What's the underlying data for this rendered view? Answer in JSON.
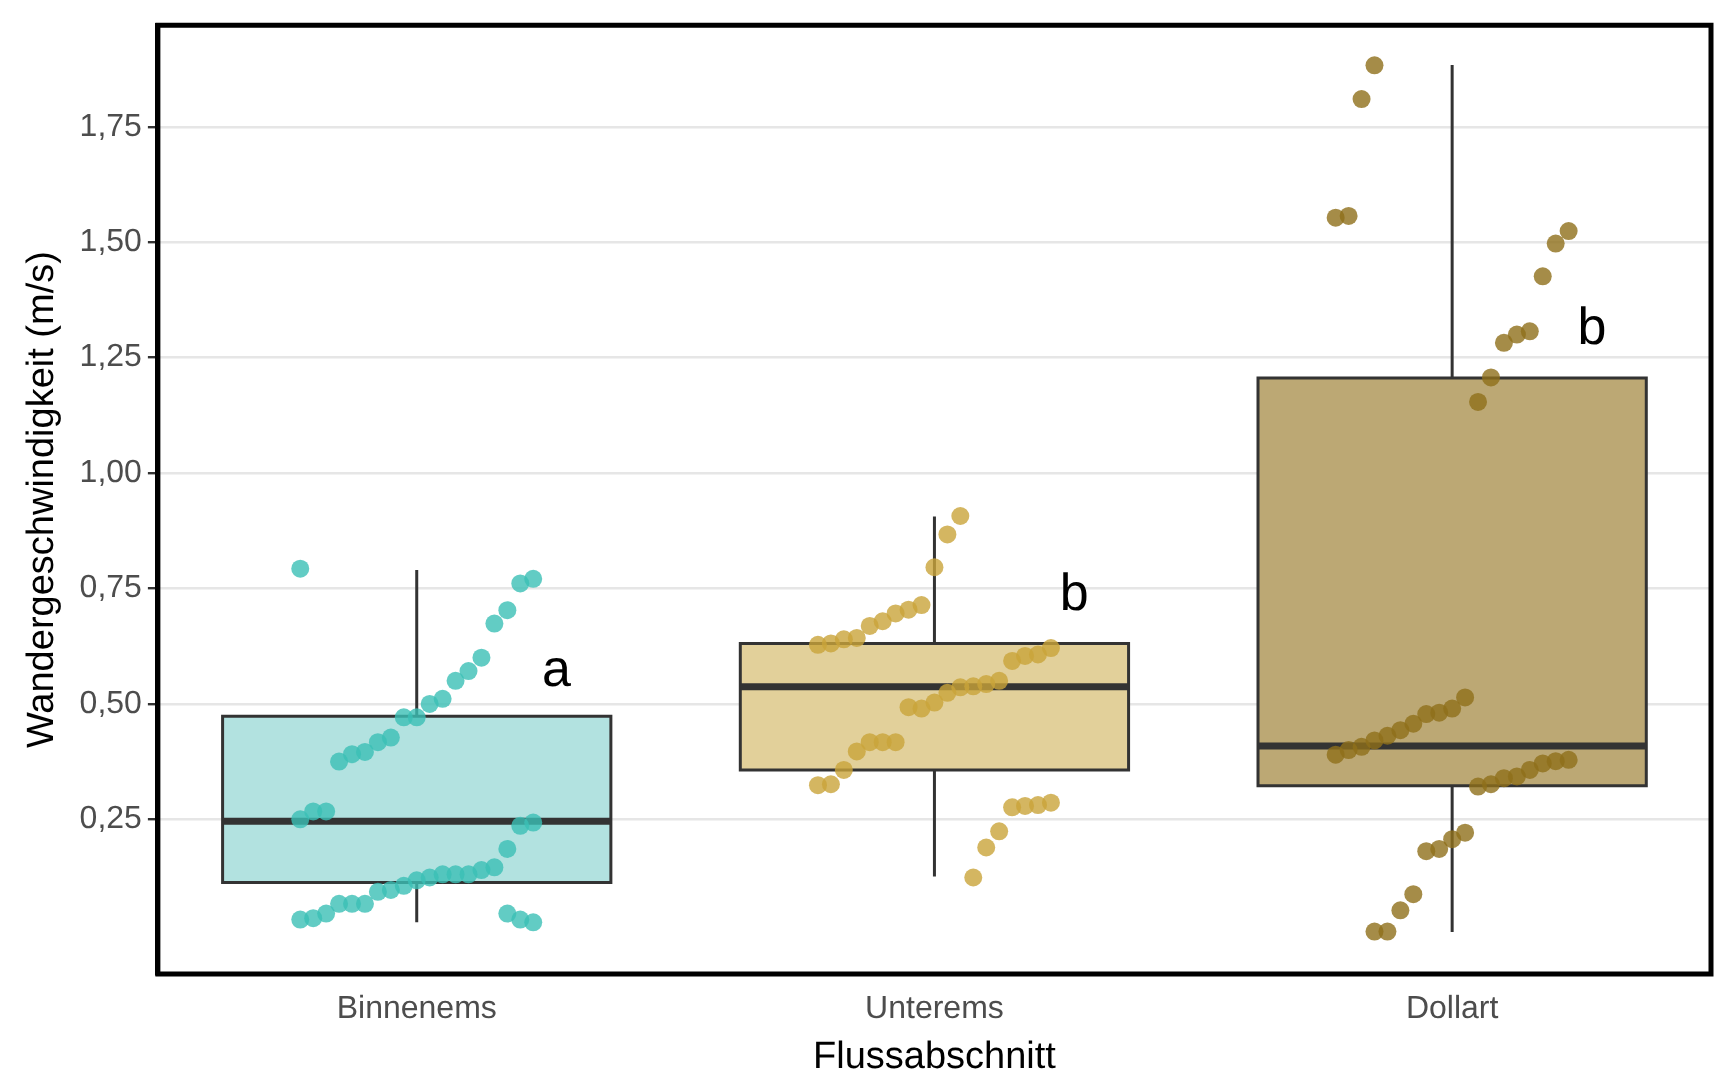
{
  "chart_data": {
    "type": "box",
    "xlabel": "Flussabschnitt",
    "ylabel": "Wandergeschwindigkeit (m/s)",
    "categories": [
      "Binnenems",
      "Unterems",
      "Dollart"
    ],
    "ylim": [
      -0.085,
      1.97
    ],
    "yticks": [
      {
        "value": 0.25,
        "label": "0,25"
      },
      {
        "value": 0.5,
        "label": "0,50"
      },
      {
        "value": 0.75,
        "label": "0,75"
      },
      {
        "value": 1,
        "label": "1,00"
      },
      {
        "value": 1.25,
        "label": "1,25"
      },
      {
        "value": 1.5,
        "label": "1,50"
      },
      {
        "value": 1.75,
        "label": "1,75"
      }
    ],
    "grid": "y",
    "legend": false,
    "marker": "circle",
    "series": [
      {
        "colors": [
          "#b2e2e0",
          "#e2d09a",
          "#bca874"
        ],
        "boxes": [
          {
            "low": 0.027,
            "q1": 0.113,
            "median": 0.246,
            "q3": 0.473,
            "high": 0.79
          },
          {
            "low": 0.126,
            "q1": 0.357,
            "median": 0.537,
            "q3": 0.631,
            "high": 0.906
          },
          {
            "low": 0.006,
            "q1": 0.323,
            "median": 0.409,
            "q3": 1.206,
            "high": 1.884
          }
        ]
      },
      {
        "type": "scatter",
        "color": "#3bbfb5",
        "x": [
          "Binnenems",
          "Binnenems",
          "Binnenems",
          "Binnenems",
          "Binnenems",
          "Binnenems",
          "Binnenems",
          "Binnenems",
          "Binnenems",
          "Binnenems",
          "Binnenems",
          "Binnenems",
          "Binnenems",
          "Binnenems",
          "Binnenems",
          "Binnenems",
          "Binnenems",
          "Binnenems",
          "Binnenems",
          "Binnenems",
          "Binnenems",
          "Binnenems",
          "Binnenems",
          "Binnenems",
          "Binnenems",
          "Binnenems",
          "Binnenems",
          "Binnenems",
          "Binnenems",
          "Binnenems",
          "Binnenems",
          "Binnenems",
          "Binnenems",
          "Binnenems",
          "Binnenems",
          "Binnenems",
          "Binnenems",
          "Binnenems",
          "Binnenems",
          "Binnenems",
          "Binnenems",
          "Binnenems"
        ],
        "values": [
          0.793,
          0.771,
          0.761,
          0.703,
          0.674,
          0.6,
          0.571,
          0.55,
          0.511,
          0.5,
          0.471,
          0.471,
          0.427,
          0.417,
          0.396,
          0.391,
          0.375,
          0.267,
          0.267,
          0.25,
          0.243,
          0.236,
          0.186,
          0.146,
          0.14,
          0.131,
          0.131,
          0.131,
          0.124,
          0.118,
          0.106,
          0.097,
          0.093,
          0.067,
          0.067,
          0.067,
          0.046,
          0.036,
          0.033,
          0.027,
          0.033,
          0.046
        ]
      },
      {
        "type": "scatter",
        "color": "#c9a43a",
        "x": [
          "Unterems",
          "Unterems",
          "Unterems",
          "Unterems",
          "Unterems",
          "Unterems",
          "Unterems",
          "Unterems",
          "Unterems",
          "Unterems",
          "Unterems",
          "Unterems",
          "Unterems",
          "Unterems",
          "Unterems",
          "Unterems",
          "Unterems",
          "Unterems",
          "Unterems",
          "Unterems",
          "Unterems",
          "Unterems",
          "Unterems",
          "Unterems",
          "Unterems",
          "Unterems",
          "Unterems",
          "Unterems",
          "Unterems",
          "Unterems",
          "Unterems",
          "Unterems",
          "Unterems",
          "Unterems",
          "Unterems",
          "Unterems",
          "Unterems",
          "Unterems"
        ],
        "values": [
          0.907,
          0.867,
          0.796,
          0.714,
          0.704,
          0.696,
          0.679,
          0.669,
          0.643,
          0.64,
          0.631,
          0.628,
          0.621,
          0.607,
          0.604,
          0.593,
          0.55,
          0.543,
          0.538,
          0.536,
          0.524,
          0.503,
          0.49,
          0.493,
          0.417,
          0.417,
          0.417,
          0.397,
          0.357,
          0.326,
          0.324,
          0.286,
          0.281,
          0.279,
          0.276,
          0.224,
          0.189,
          0.124
        ]
      },
      {
        "type": "scatter",
        "color": "#8f6f1a",
        "x": [
          "Dollart",
          "Dollart",
          "Dollart",
          "Dollart",
          "Dollart",
          "Dollart",
          "Dollart",
          "Dollart",
          "Dollart",
          "Dollart",
          "Dollart",
          "Dollart",
          "Dollart",
          "Dollart",
          "Dollart",
          "Dollart",
          "Dollart",
          "Dollart",
          "Dollart",
          "Dollart",
          "Dollart",
          "Dollart",
          "Dollart",
          "Dollart",
          "Dollart",
          "Dollart",
          "Dollart",
          "Dollart",
          "Dollart",
          "Dollart",
          "Dollart",
          "Dollart",
          "Dollart",
          "Dollart",
          "Dollart",
          "Dollart",
          "Dollart",
          "Dollart",
          "Dollart"
        ],
        "values": [
          1.883,
          1.81,
          1.557,
          1.553,
          1.524,
          1.497,
          1.426,
          1.307,
          1.3,
          1.282,
          1.207,
          1.154,
          0.514,
          0.49,
          0.481,
          0.478,
          0.457,
          0.443,
          0.431,
          0.421,
          0.407,
          0.4,
          0.39,
          0.379,
          0.376,
          0.371,
          0.357,
          0.343,
          0.339,
          0.326,
          0.321,
          0.221,
          0.207,
          0.186,
          0.181,
          0.088,
          0.053,
          0.007,
          0.007
        ]
      }
    ],
    "annotations": [
      {
        "text": "a",
        "x": "Binnenems",
        "y": 0.57
      },
      {
        "text": "b",
        "x": "Unterems",
        "y": 0.735
      },
      {
        "text": "b",
        "x": "Dollart",
        "y": 1.31
      }
    ]
  }
}
